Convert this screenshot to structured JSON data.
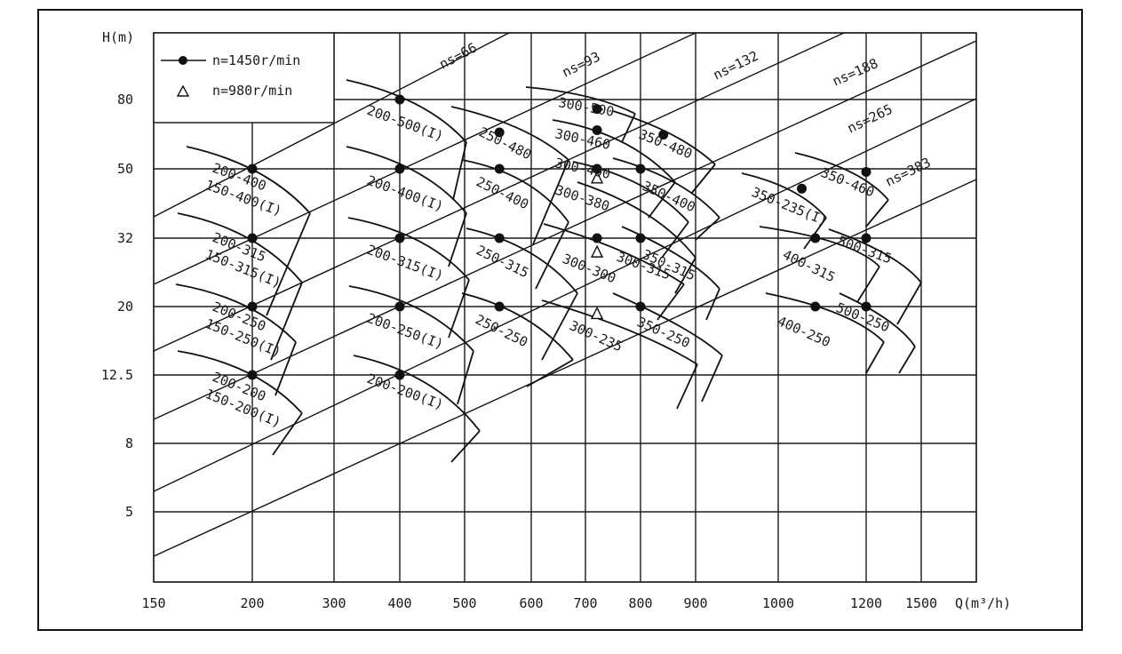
{
  "chart_data": {
    "type": "scatter",
    "title": "",
    "xlabel": "Q(m³/h)",
    "ylabel": "H(m)",
    "x_scale": "log",
    "y_scale": "log",
    "x_ticks": [
      "150",
      "200",
      "300",
      "400",
      "500",
      "600",
      "700",
      "800",
      "900",
      "1000",
      "1200",
      "1500"
    ],
    "y_ticks": [
      "80",
      "50",
      "32",
      "20",
      "12.5",
      "8",
      "5"
    ],
    "grid": true,
    "legend": {
      "placement": "top-left",
      "entries": [
        {
          "marker": "dot",
          "label": "n=1450r/min"
        },
        {
          "marker": "triangle",
          "label": "n=980r/min"
        }
      ]
    },
    "ns_lines": [
      "ns=66",
      "ns=93",
      "ns=132",
      "ns=188",
      "ns=265",
      "ns=383"
    ],
    "series": [
      {
        "name": "n=1450r/min",
        "marker": "dot",
        "points": [
          {
            "q": 200,
            "h": 50
          },
          {
            "q": 200,
            "h": 32
          },
          {
            "q": 200,
            "h": 20
          },
          {
            "q": 200,
            "h": 12.5
          },
          {
            "q": 400,
            "h": 80
          },
          {
            "q": 400,
            "h": 50
          },
          {
            "q": 400,
            "h": 32
          },
          {
            "q": 400,
            "h": 20
          },
          {
            "q": 400,
            "h": 12.5
          },
          {
            "q": 550,
            "h": 64
          },
          {
            "q": 550,
            "h": 50
          },
          {
            "q": 550,
            "h": 32
          },
          {
            "q": 550,
            "h": 20
          },
          {
            "q": 720,
            "h": 75
          },
          {
            "q": 720,
            "h": 65
          },
          {
            "q": 720,
            "h": 50
          },
          {
            "q": 720,
            "h": 32
          },
          {
            "q": 800,
            "h": 50
          },
          {
            "q": 800,
            "h": 32
          },
          {
            "q": 800,
            "h": 20
          },
          {
            "q": 840,
            "h": 63
          },
          {
            "q": 1050,
            "h": 44
          },
          {
            "q": 1080,
            "h": 32
          },
          {
            "q": 1080,
            "h": 20
          },
          {
            "q": 1200,
            "h": 49
          },
          {
            "q": 1200,
            "h": 32
          },
          {
            "q": 1200,
            "h": 20
          }
        ]
      },
      {
        "name": "n=980r/min",
        "marker": "triangle",
        "points": [
          {
            "q": 720,
            "h": 47
          },
          {
            "q": 720,
            "h": 29
          },
          {
            "q": 720,
            "h": 19
          }
        ]
      }
    ],
    "curve_labels": [
      "200-400",
      "150-400(I)",
      "200-315",
      "150-315(I)",
      "200-250",
      "150-250(I)",
      "200-200",
      "150-200(I)",
      "200-500(I)",
      "200-400(I)",
      "200-315(I)",
      "200-250(I)",
      "200-200(I)",
      "250-480",
      "250-400",
      "250-315",
      "250-250",
      "300-500",
      "300-460",
      "300-400",
      "300-380",
      "300-315",
      "300-300",
      "300-235",
      "350-480",
      "350-400",
      "350-315",
      "350-250",
      "350-235(I)",
      "400-315",
      "400-250",
      "350-460",
      "500-315",
      "500-250"
    ]
  }
}
